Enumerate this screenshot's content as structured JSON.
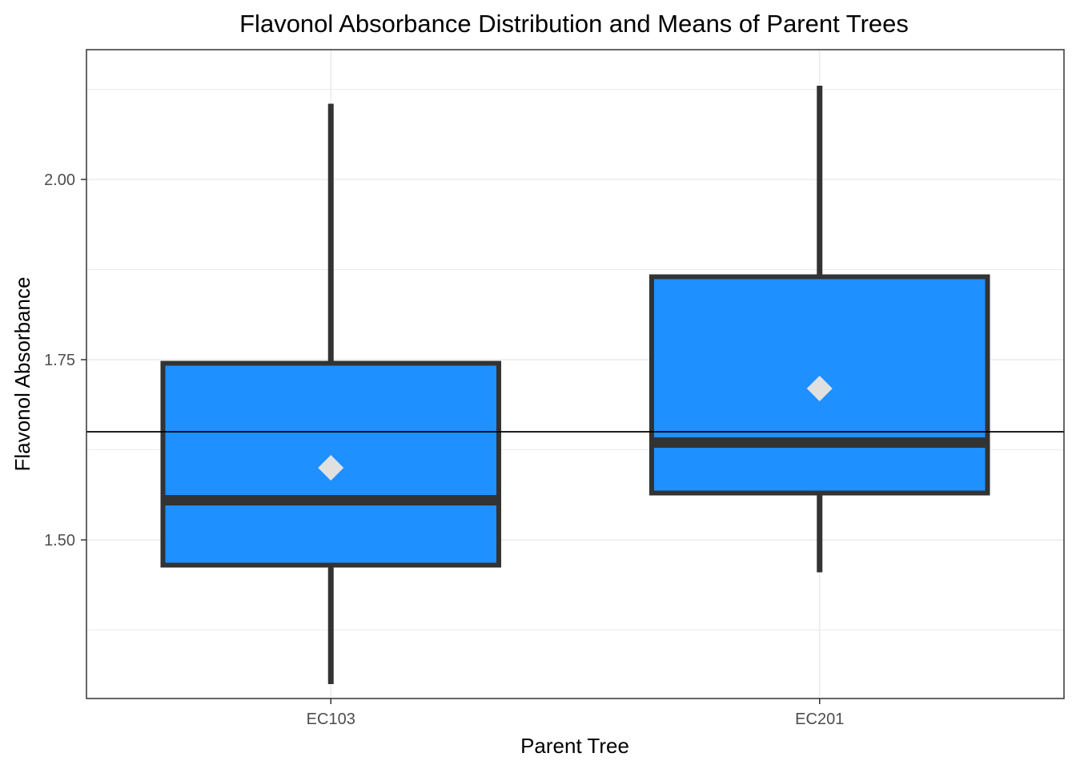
{
  "chart_data": {
    "type": "boxplot",
    "title": "Flavonol Absorbance Distribution and Means of Parent Trees",
    "xlabel": "Parent Tree",
    "ylabel": "Flavonol Absorbance",
    "categories": [
      "EC103",
      "EC201"
    ],
    "boxes": [
      {
        "category": "EC103",
        "whisker_low": 1.3,
        "q1": 1.465,
        "median": 1.555,
        "q3": 1.745,
        "whisker_high": 2.105,
        "mean": 1.6
      },
      {
        "category": "EC201",
        "whisker_low": 1.455,
        "q1": 1.565,
        "median": 1.635,
        "q3": 1.865,
        "whisker_high": 2.13,
        "mean": 1.71
      }
    ],
    "reference_line": {
      "y": 1.65
    },
    "ylim": [
      1.28,
      2.18
    ],
    "yticks": [
      1.5,
      1.75,
      2.0
    ],
    "ytick_labels": [
      "1.50",
      "1.75",
      "2.00"
    ],
    "grid": true,
    "colors": {
      "box_fill": "#1e90ff",
      "box_outline": "#333333",
      "mean_marker": "#e0e0e0",
      "reference_line": "#000000",
      "grid": "#ebebeb"
    }
  }
}
